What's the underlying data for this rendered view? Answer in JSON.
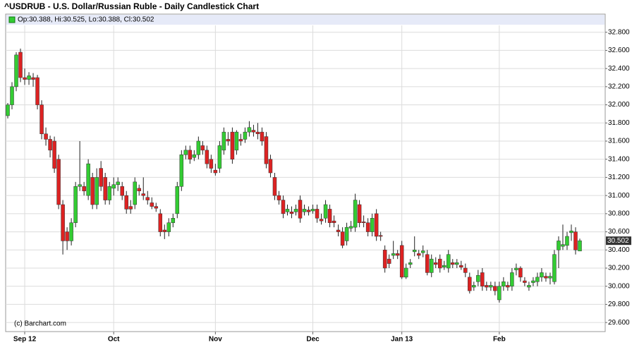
{
  "chart_data": {
    "type": "candlestick",
    "title": "^USDRUB - U.S. Dollar/Russian Ruble - Daily Candlestick Chart",
    "legend_text": "Op:30.388, Hi:30.525, Lo:30.388, Cl:30.502",
    "last_price_label": "30.502",
    "footer": "(c) Barchart.com",
    "up_color": "#33cc33",
    "down_color": "#dd2222",
    "grid": true,
    "ylim": [
      29.5,
      33.0
    ],
    "yticks": [
      {
        "value": 29.6,
        "label": "29.600"
      },
      {
        "value": 29.8,
        "label": "29.800"
      },
      {
        "value": 30.0,
        "label": "30.000"
      },
      {
        "value": 30.2,
        "label": "30.200"
      },
      {
        "value": 30.4,
        "label": "30.400"
      },
      {
        "value": 30.6,
        "label": "30.600"
      },
      {
        "value": 30.8,
        "label": "30.800"
      },
      {
        "value": 31.0,
        "label": "31.000"
      },
      {
        "value": 31.2,
        "label": "31.200"
      },
      {
        "value": 31.4,
        "label": "31.400"
      },
      {
        "value": 31.6,
        "label": "31.600"
      },
      {
        "value": 31.8,
        "label": "31.800"
      },
      {
        "value": 32.0,
        "label": "32.000"
      },
      {
        "value": 32.2,
        "label": "32.200"
      },
      {
        "value": 32.4,
        "label": "32.400"
      },
      {
        "value": 32.6,
        "label": "32.600"
      },
      {
        "value": 32.8,
        "label": "32.800"
      }
    ],
    "categories": [
      null,
      null,
      null,
      null,
      "Sep 12",
      null,
      null,
      null,
      null,
      null,
      null,
      null,
      null,
      null,
      null,
      null,
      null,
      null,
      null,
      null,
      null,
      null,
      null,
      null,
      null,
      "Oct",
      null,
      null,
      null,
      null,
      null,
      null,
      null,
      null,
      null,
      null,
      null,
      null,
      null,
      null,
      null,
      null,
      null,
      null,
      null,
      null,
      null,
      null,
      null,
      "Nov",
      null,
      null,
      null,
      null,
      null,
      null,
      null,
      null,
      null,
      null,
      null,
      null,
      null,
      null,
      null,
      null,
      null,
      null,
      null,
      null,
      null,
      null,
      "Dec",
      null,
      null,
      null,
      null,
      null,
      null,
      null,
      null,
      null,
      null,
      null,
      null,
      null,
      null,
      null,
      null,
      null,
      null,
      null,
      null,
      "Jan 13",
      null,
      null,
      null,
      null,
      null,
      null,
      null,
      null,
      null,
      null,
      null,
      null,
      null,
      null,
      null,
      null,
      null,
      null,
      null,
      null,
      null,
      null,
      "Feb",
      null,
      null,
      null,
      null,
      null,
      null,
      null,
      null,
      null,
      null,
      null,
      null,
      null,
      null,
      null,
      null,
      null,
      null,
      null
    ],
    "open": [
      31.88,
      32.0,
      32.2,
      32.58,
      32.3,
      32.28,
      32.3,
      32.3,
      32.0,
      31.68,
      31.62,
      31.6,
      31.4,
      30.9,
      30.6,
      30.5,
      30.7,
      31.1,
      31.1,
      31.0,
      31.2,
      30.9,
      31.3,
      31.2,
      30.95,
      31.08,
      31.12,
      31.1,
      31.0,
      30.88,
      30.9,
      31.08,
      31.02,
      30.98,
      30.92,
      30.88,
      30.8,
      30.62,
      30.6,
      30.7,
      30.8,
      31.1,
      31.45,
      31.5,
      31.42,
      31.45,
      31.55,
      31.5,
      31.4,
      31.28,
      31.3,
      31.5,
      31.62,
      31.7,
      31.5,
      31.62,
      31.62,
      31.7,
      31.72,
      31.7,
      31.7,
      31.65,
      31.4,
      31.2,
      31.0,
      30.95,
      30.82,
      30.82,
      30.82,
      30.95,
      30.82,
      30.84,
      30.83,
      30.85,
      30.74,
      30.75,
      30.85,
      30.72,
      30.62,
      30.6,
      30.5,
      30.64,
      30.65,
      30.9,
      30.71,
      30.7,
      30.6,
      30.8,
      30.56,
      30.4,
      30.3,
      30.34,
      30.36,
      30.45,
      30.1,
      30.24,
      30.38,
      30.36,
      30.37,
      30.35,
      30.15,
      30.26,
      30.3,
      30.21,
      30.2,
      30.26,
      30.24,
      30.23,
      30.2,
      30.1,
      29.99,
      30.05,
      30.15,
      30.01,
      29.99,
      30.0,
      29.85,
      30.0,
      30.01,
      30.0,
      30.18,
      30.2,
      30.06,
      29.99,
      30.04,
      30.05,
      30.1,
      30.11,
      30.09,
      30.05,
      30.4,
      30.44,
      30.45,
      30.59,
      30.6,
      30.388
    ],
    "high": [
      32.02,
      32.25,
      32.58,
      32.62,
      32.4,
      32.36,
      32.35,
      32.33,
      32.05,
      31.75,
      31.66,
      31.65,
      31.45,
      30.95,
      30.65,
      30.75,
      31.15,
      31.6,
      31.15,
      31.4,
      31.25,
      31.3,
      31.38,
      31.25,
      31.15,
      31.2,
      31.2,
      31.15,
      31.05,
      30.95,
      31.2,
      31.12,
      31.2,
      31.05,
      30.98,
      30.92,
      30.85,
      30.68,
      30.75,
      30.8,
      31.15,
      31.5,
      31.55,
      31.55,
      31.5,
      31.65,
      31.6,
      31.55,
      31.45,
      31.35,
      31.6,
      31.75,
      31.7,
      31.75,
      31.72,
      31.68,
      31.75,
      31.82,
      31.78,
      31.8,
      31.75,
      31.7,
      31.45,
      31.25,
      31.05,
      31.0,
      30.9,
      30.88,
      30.9,
      31.0,
      30.9,
      30.88,
      30.9,
      30.9,
      30.8,
      30.95,
      30.9,
      30.78,
      30.68,
      30.65,
      30.7,
      30.72,
      31.02,
      30.95,
      30.78,
      30.75,
      30.8,
      30.85,
      30.6,
      30.45,
      30.35,
      30.5,
      30.4,
      30.5,
      30.25,
      30.3,
      30.55,
      30.4,
      30.45,
      30.4,
      30.35,
      30.32,
      30.35,
      30.28,
      30.4,
      30.3,
      30.3,
      30.28,
      30.25,
      30.15,
      30.05,
      30.18,
      30.2,
      30.05,
      30.05,
      30.05,
      30.05,
      30.1,
      30.05,
      30.2,
      30.25,
      30.22,
      30.1,
      30.05,
      30.1,
      30.15,
      30.2,
      30.15,
      30.15,
      30.4,
      30.55,
      30.68,
      30.6,
      30.68,
      30.65,
      30.525
    ],
    "low": [
      31.85,
      31.95,
      32.15,
      32.25,
      32.22,
      32.22,
      32.2,
      31.95,
      31.62,
      31.55,
      31.42,
      31.25,
      30.85,
      30.35,
      30.4,
      30.45,
      30.65,
      31.05,
      31.0,
      30.95,
      30.85,
      30.85,
      31.05,
      30.9,
      30.9,
      31.0,
      31.05,
      30.95,
      30.8,
      30.8,
      30.85,
      31.0,
      30.95,
      30.9,
      30.85,
      30.82,
      30.55,
      30.52,
      30.55,
      30.65,
      30.75,
      31.05,
      31.4,
      31.35,
      31.38,
      31.4,
      31.45,
      31.3,
      31.25,
      31.22,
      31.25,
      31.45,
      31.55,
      31.35,
      31.45,
      31.55,
      31.58,
      31.65,
      31.65,
      31.62,
      31.55,
      31.3,
      31.2,
      30.95,
      30.9,
      30.75,
      30.78,
      30.75,
      30.78,
      30.7,
      30.78,
      30.78,
      30.8,
      30.7,
      30.68,
      30.7,
      30.65,
      30.65,
      30.55,
      30.42,
      30.45,
      30.6,
      30.6,
      30.65,
      30.65,
      30.55,
      30.55,
      30.5,
      30.5,
      30.15,
      30.2,
      30.3,
      30.3,
      30.08,
      30.08,
      30.2,
      30.33,
      30.3,
      30.32,
      30.12,
      30.1,
      30.2,
      30.15,
      30.18,
      30.15,
      30.2,
      30.2,
      30.18,
      30.1,
      29.92,
      29.95,
      30.0,
      29.95,
      29.95,
      29.95,
      29.9,
      29.82,
      29.95,
      29.95,
      29.95,
      30.12,
      30.05,
      30.0,
      29.95,
      30.0,
      30.0,
      30.05,
      30.05,
      30.02,
      30.02,
      30.2,
      30.4,
      30.4,
      30.5,
      30.35,
      30.388
    ],
    "close": [
      32.0,
      32.2,
      32.55,
      32.3,
      32.28,
      32.32,
      32.28,
      32.0,
      31.68,
      31.62,
      31.5,
      31.3,
      30.9,
      30.5,
      30.5,
      30.7,
      31.1,
      31.12,
      31.05,
      31.35,
      30.9,
      31.2,
      31.1,
      30.95,
      31.1,
      31.12,
      31.15,
      31.0,
      30.85,
      30.85,
      31.15,
      31.05,
      31.0,
      30.95,
      30.88,
      30.86,
      30.6,
      30.6,
      30.7,
      30.75,
      31.1,
      31.45,
      31.5,
      31.4,
      31.45,
      31.6,
      31.5,
      31.35,
      31.3,
      31.25,
      31.55,
      31.7,
      31.6,
      31.4,
      31.7,
      31.6,
      31.7,
      31.75,
      31.7,
      31.68,
      31.6,
      31.35,
      31.25,
      31.0,
      30.95,
      30.8,
      30.85,
      30.8,
      30.85,
      30.75,
      30.85,
      30.82,
      30.85,
      30.75,
      30.72,
      30.9,
      30.7,
      30.7,
      30.6,
      30.45,
      30.65,
      30.66,
      30.95,
      30.7,
      30.7,
      30.6,
      30.75,
      30.55,
      30.55,
      30.2,
      30.25,
      30.36,
      30.34,
      30.1,
      30.2,
      30.26,
      30.4,
      30.34,
      30.39,
      30.15,
      30.3,
      30.24,
      30.2,
      30.23,
      30.35,
      30.24,
      30.26,
      30.21,
      30.15,
      29.95,
      30.01,
      30.12,
      30.0,
      29.99,
      30.01,
      29.95,
      30.0,
      30.05,
      29.99,
      30.15,
      30.2,
      30.1,
      30.04,
      30.01,
      30.06,
      30.1,
      30.15,
      30.09,
      30.11,
      30.35,
      30.5,
      30.46,
      30.55,
      30.61,
      30.4,
      30.502
    ]
  }
}
